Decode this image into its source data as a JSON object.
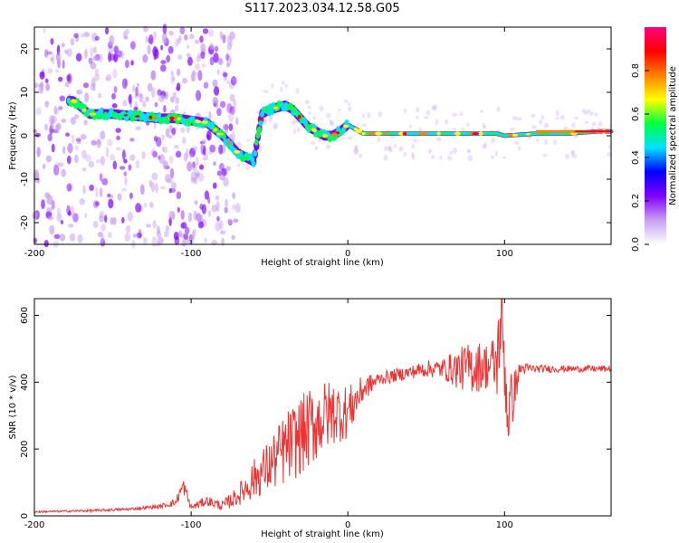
{
  "title": "S117.2023.034.12.58.G05",
  "chart_data": [
    {
      "type": "heatmap",
      "xlabel": "Height of straight line (km)",
      "ylabel": "Frequency (Hz)",
      "xlim": [
        -200,
        168
      ],
      "ylim": [
        -25,
        25
      ],
      "xticks": [
        -200,
        -100,
        0,
        100
      ],
      "yticks": [
        -20,
        -10,
        0,
        10,
        20
      ],
      "xtick_labels": [
        "-200",
        "-100",
        "0",
        "100"
      ],
      "ytick_labels": [
        "-20",
        "-10",
        "0",
        "10",
        "20"
      ],
      "colorbar": {
        "label": "Normalized spectral amplitude",
        "range": [
          0,
          1
        ],
        "ticks": [
          0.0,
          0.2,
          0.4,
          0.6,
          0.8
        ],
        "tick_labels": [
          "0.0",
          "0.2",
          "0.4",
          "0.6",
          "0.8"
        ],
        "colors": [
          "#ffffff",
          "#c8a0f0",
          "#8000ff",
          "#0000ff",
          "#00e0ff",
          "#00ff40",
          "#ffff00",
          "#ff8000",
          "#ff0000",
          "#ff0080"
        ]
      },
      "ridge": {
        "x": [
          -175,
          -165,
          -150,
          -135,
          -120,
          -110,
          -100,
          -90,
          -80,
          -70,
          -60,
          -55,
          -50,
          -45,
          -40,
          -35,
          -30,
          -25,
          -20,
          -15,
          -10,
          -5,
          0,
          5,
          10,
          20,
          40,
          60,
          80,
          95,
          100,
          120,
          140,
          160,
          168
        ],
        "y": [
          8,
          5,
          5,
          4.5,
          4,
          4,
          3.5,
          3,
          0,
          -4,
          -6,
          5,
          6,
          6.5,
          7,
          6,
          4,
          2,
          1,
          0,
          0,
          1,
          2.5,
          1.5,
          0.5,
          0.5,
          0.5,
          0.5,
          0.5,
          0.5,
          0,
          0.5,
          0.5,
          1,
          1
        ]
      }
    },
    {
      "type": "line",
      "xlabel": "Height of straight line (km)",
      "ylabel": "SNR (10 * v/v)",
      "xlim": [
        -200,
        168
      ],
      "ylim": [
        0,
        650
      ],
      "xticks": [
        -200,
        -100,
        0,
        100
      ],
      "yticks": [
        0,
        200,
        400,
        600
      ],
      "xtick_labels": [
        "-200",
        "-100",
        "0",
        "100"
      ],
      "ytick_labels": [
        "0",
        "200",
        "400",
        "600"
      ],
      "color": "#ee3333",
      "x": [
        -200,
        -180,
        -160,
        -140,
        -120,
        -110,
        -105,
        -100,
        -90,
        -80,
        -70,
        -60,
        -50,
        -40,
        -30,
        -20,
        -10,
        0,
        10,
        20,
        30,
        40,
        50,
        60,
        70,
        80,
        90,
        95,
        98,
        100,
        102,
        110,
        120,
        140,
        160,
        168
      ],
      "y": [
        12,
        14,
        16,
        20,
        28,
        40,
        90,
        25,
        45,
        30,
        60,
        110,
        150,
        200,
        240,
        280,
        310,
        310,
        380,
        410,
        420,
        430,
        440,
        440,
        440,
        445,
        450,
        450,
        600,
        460,
        300,
        440,
        440,
        440,
        440,
        440
      ],
      "noise_amplitude": [
        3,
        3,
        4,
        4,
        6,
        12,
        25,
        10,
        15,
        15,
        30,
        60,
        80,
        110,
        120,
        120,
        100,
        80,
        40,
        20,
        20,
        20,
        25,
        30,
        60,
        80,
        70,
        110,
        150,
        120,
        120,
        20,
        12,
        10,
        10,
        10
      ]
    }
  ]
}
